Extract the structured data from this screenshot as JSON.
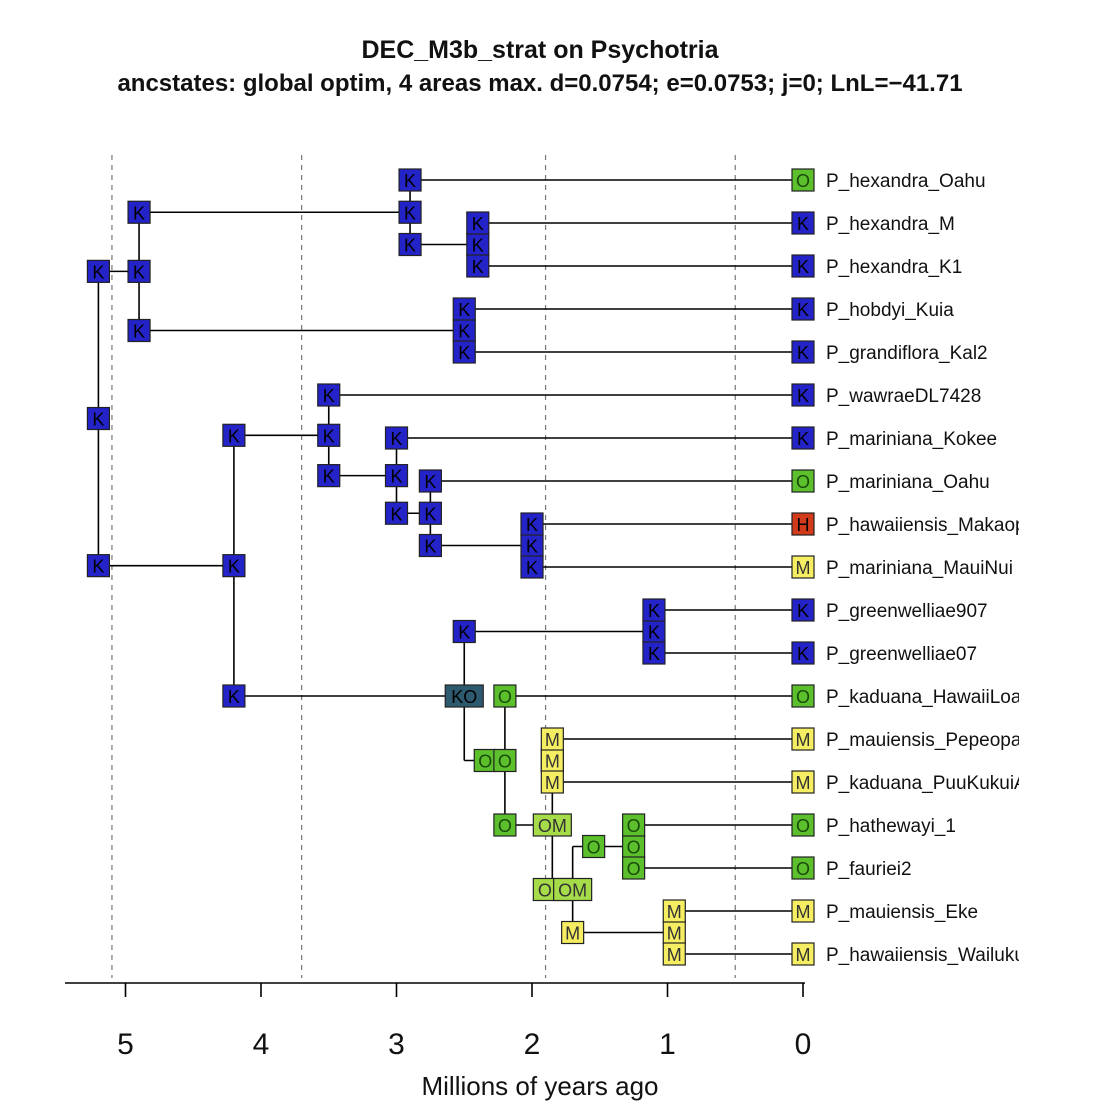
{
  "chart_data": {
    "type": "phylogeny",
    "title": "DEC_M3b_strat on Psychotria",
    "subtitle": "ancstates: global optim, 4 areas max. d=0.0754; e=0.0753; j=0; LnL=−41.71",
    "xlabel": "Millions of years ago",
    "xlim": [
      5.45,
      0
    ],
    "xticks": [
      5,
      4,
      3,
      2,
      1,
      0
    ],
    "stratum_boundaries": [
      5.1,
      3.7,
      1.9,
      0.5
    ],
    "area_colors": {
      "K": "#2323c8",
      "O": "#5cc02c",
      "M": "#f6ee62",
      "H": "#d23a1c",
      "KO": "#2d5a6e",
      "OM": "#a6dc49"
    },
    "tips": [
      {
        "name": "P_hexandra_Oahu",
        "state": "O"
      },
      {
        "name": "P_hexandra_M",
        "state": "K"
      },
      {
        "name": "P_hexandra_K1",
        "state": "K"
      },
      {
        "name": "P_hobdyi_Kuia",
        "state": "K"
      },
      {
        "name": "P_grandiflora_Kal2",
        "state": "K"
      },
      {
        "name": "P_wawraeDL7428",
        "state": "K"
      },
      {
        "name": "P_mariniana_Kokee",
        "state": "K"
      },
      {
        "name": "P_mariniana_Oahu",
        "state": "O"
      },
      {
        "name": "P_hawaiiensis_Makaopuhi",
        "state": "H"
      },
      {
        "name": "P_mariniana_MauiNui",
        "state": "M"
      },
      {
        "name": "P_greenwelliae907",
        "state": "K"
      },
      {
        "name": "P_greenwelliae07",
        "state": "K"
      },
      {
        "name": "P_kaduana_HawaiiLoa",
        "state": "O"
      },
      {
        "name": "P_mauiensis_Pepeopae",
        "state": "M"
      },
      {
        "name": "P_kaduana_PuuKukuiAS",
        "state": "M"
      },
      {
        "name": "P_hathewayi_1",
        "state": "O"
      },
      {
        "name": "P_fauriei2",
        "state": "O"
      },
      {
        "name": "P_mauiensis_Eke",
        "state": "M"
      },
      {
        "name": "P_hawaiiensis_WailukuJM",
        "state": "M"
      }
    ],
    "nodes": [
      {
        "id": "n_root",
        "age": 5.2,
        "children": [
          "n_kaual",
          "n_main"
        ],
        "state": "K",
        "top": "K",
        "bot": "K"
      },
      {
        "id": "n_kaual",
        "age": 4.9,
        "children": [
          "n_hex",
          "n_hob"
        ],
        "state": "K",
        "top": "K",
        "bot": "K"
      },
      {
        "id": "n_hex",
        "age": 2.9,
        "children": [
          0,
          "n_hex2"
        ],
        "state": "K",
        "top": "K",
        "bot": "K"
      },
      {
        "id": "n_hex2",
        "age": 2.4,
        "children": [
          1,
          2
        ],
        "state": "K",
        "top": "K",
        "bot": "K"
      },
      {
        "id": "n_hob",
        "age": 2.5,
        "children": [
          3,
          4
        ],
        "state": "K",
        "top": "K",
        "bot": "K"
      },
      {
        "id": "n_main",
        "age": 4.2,
        "children": [
          "n_waw",
          "n_rest"
        ],
        "state": "K",
        "top": "K",
        "bot": "K"
      },
      {
        "id": "n_waw",
        "age": 3.5,
        "children": [
          5,
          "n_mar"
        ],
        "state": "K",
        "top": "K",
        "bot": "K"
      },
      {
        "id": "n_mar",
        "age": 3.0,
        "children": [
          6,
          "n_mar2"
        ],
        "state": "K",
        "top": "K",
        "bot": "K"
      },
      {
        "id": "n_mar2",
        "age": 2.75,
        "children": [
          7,
          "n_hm"
        ],
        "state": "K",
        "top": "K",
        "bot": "K"
      },
      {
        "id": "n_hm",
        "age": 2.0,
        "children": [
          8,
          9
        ],
        "state": "K",
        "top": "K",
        "bot": "K"
      },
      {
        "id": "n_rest",
        "age": 2.5,
        "children": [
          "n_gw",
          "n_kad"
        ],
        "state": "KO",
        "top": "K",
        "bot": "C"
      },
      {
        "id": "n_gw",
        "age": 1.1,
        "children": [
          10,
          11
        ],
        "state": "K",
        "top": "K",
        "bot": "K"
      },
      {
        "id": "n_kad",
        "age": 2.2,
        "children": [
          12,
          "n_big"
        ],
        "state": "O",
        "top": "O",
        "bot": "O"
      },
      {
        "id": "n_big",
        "age": 1.85,
        "children": [
          "n_mp",
          "n_hf"
        ],
        "state": "OM",
        "top": "M",
        "bot": "OM"
      },
      {
        "id": "n_mp",
        "age": 1.85,
        "children": [
          13,
          14
        ],
        "state": "M",
        "top": "M",
        "bot": "M"
      },
      {
        "id": "n_hf",
        "age": 1.7,
        "children": [
          "n_hf2",
          "n_me"
        ],
        "state": "OM",
        "top": "C",
        "bot": "M"
      },
      {
        "id": "n_hf2",
        "age": 1.25,
        "children": [
          15,
          16
        ],
        "state": "O",
        "top": "O",
        "bot": "O"
      },
      {
        "id": "n_me",
        "age": 0.95,
        "children": [
          17,
          18
        ],
        "state": "M",
        "top": "M",
        "bot": "M"
      }
    ]
  }
}
